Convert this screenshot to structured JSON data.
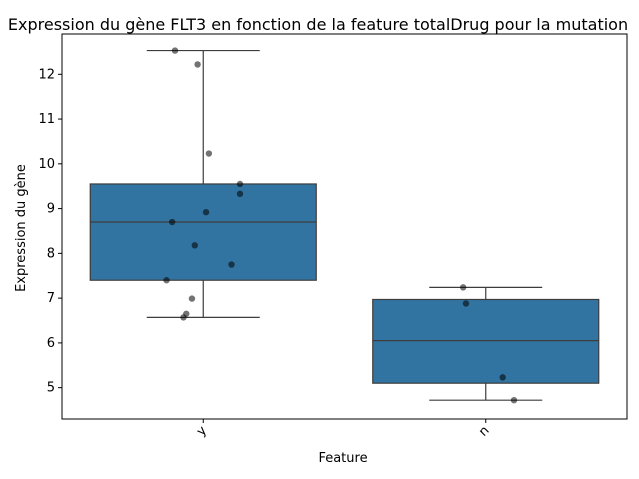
{
  "chart_data": {
    "type": "box",
    "title": "Expression du gène FLT3 en fonction de la feature totalDrug pour la mutation",
    "xlabel": "Feature",
    "ylabel": "Expression du gène",
    "categories": [
      "y",
      "n"
    ],
    "ylim": [
      4.3,
      12.9
    ],
    "yticks": [
      5,
      6,
      7,
      8,
      9,
      10,
      11,
      12
    ],
    "grid": false,
    "colors": {
      "box_fill": "#3274a1",
      "box_line": "#3d3d3d",
      "points": "#000000"
    },
    "boxes": [
      {
        "category": "y",
        "whisker_low": 6.57,
        "q1": 7.4,
        "median": 8.7,
        "q3": 9.55,
        "whisker_high": 12.53
      },
      {
        "category": "n",
        "whisker_low": 4.72,
        "q1": 5.1,
        "median": 6.05,
        "q3": 6.97,
        "whisker_high": 7.24
      }
    ],
    "points": [
      {
        "category": "y",
        "values": [
          12.53,
          12.22,
          10.23,
          9.55,
          9.33,
          8.92,
          8.7,
          8.18,
          7.75,
          7.4,
          6.99,
          6.65,
          6.57
        ]
      },
      {
        "category": "n",
        "values": [
          7.24,
          6.88,
          5.23,
          4.72
        ]
      }
    ]
  }
}
